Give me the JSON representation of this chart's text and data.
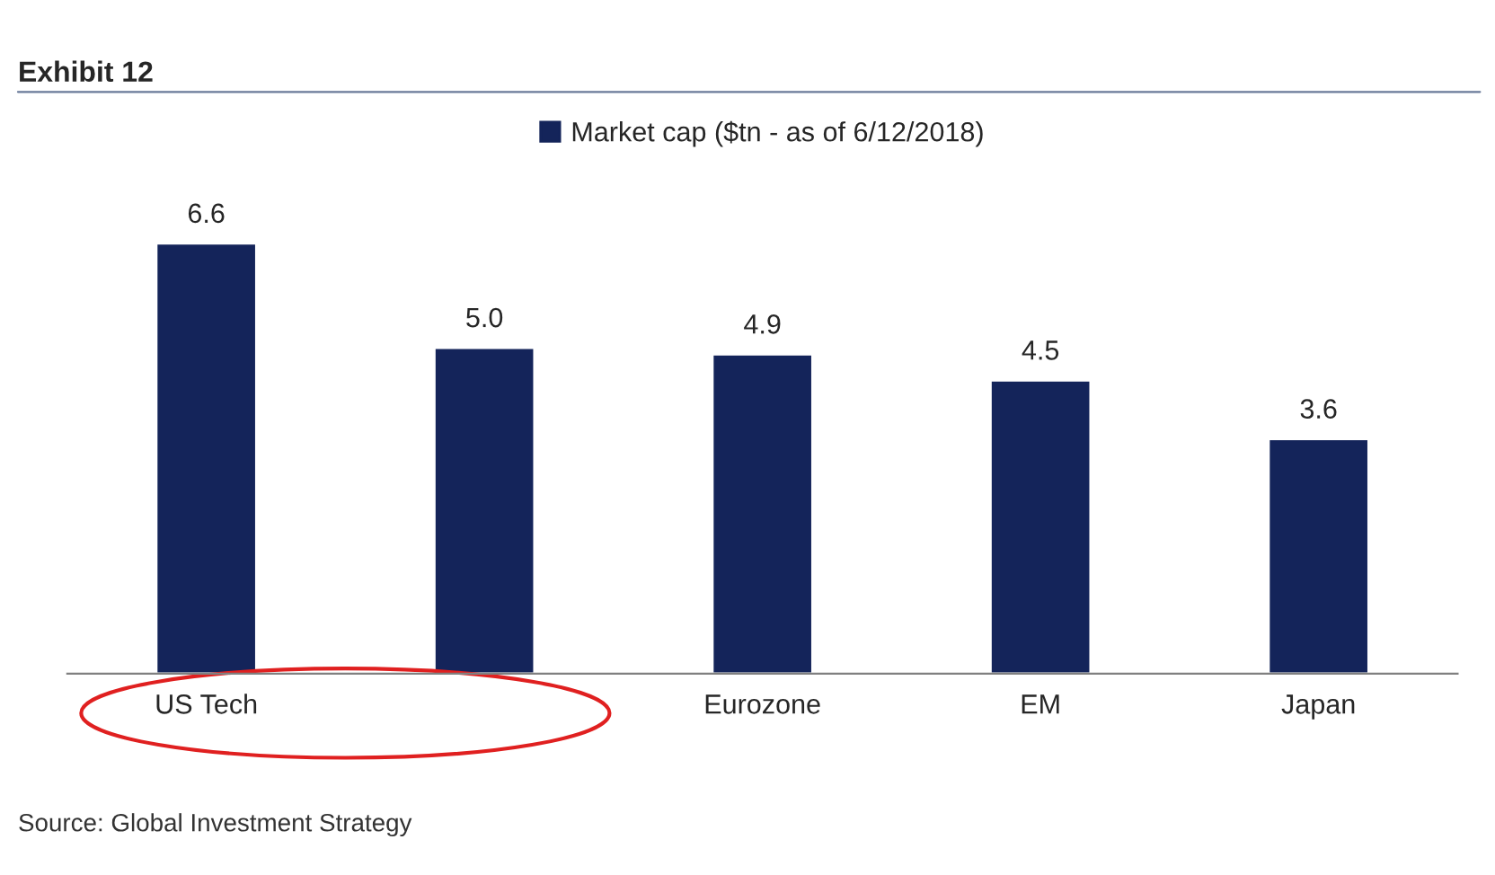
{
  "chart_data": {
    "type": "bar",
    "title": "Exhibit 12",
    "categories": [
      "US Tech",
      null,
      "Eurozone",
      "EM",
      "Japan"
    ],
    "series": [
      {
        "name": "Market cap ($tn - as of 6/12/2018)",
        "color": "#14245a",
        "values": [
          6.6,
          5.0,
          4.9,
          4.5,
          3.6
        ],
        "value_labels": [
          "6.6",
          "5.0",
          "4.9",
          "4.5",
          "3.6"
        ]
      }
    ],
    "legend": "top",
    "grid": false,
    "annotations": [
      "Source: Global Investment Strategy"
    ]
  }
}
